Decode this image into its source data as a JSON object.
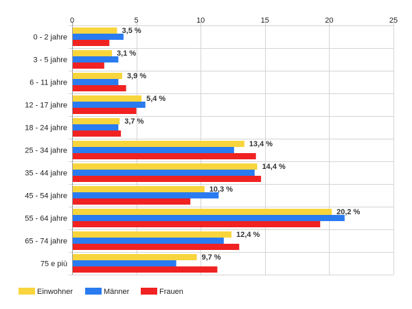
{
  "chart_data": {
    "type": "bar",
    "orientation": "horizontal",
    "categories": [
      "0 - 2 jahre",
      "3 - 5 jahre",
      "6 - 11 jahre",
      "12 - 17 jahre",
      "18 - 24 jahre",
      "25 - 34 jahre",
      "35 - 44 jahre",
      "45 - 54 jahre",
      "55 - 64 jahre",
      "65 - 74 jahre",
      "75 e più"
    ],
    "series": [
      {
        "name": "Einwohner",
        "color": "#f8d53c",
        "values": [
          3.5,
          3.1,
          3.9,
          5.4,
          3.7,
          13.4,
          14.4,
          10.3,
          20.2,
          12.4,
          9.7
        ]
      },
      {
        "name": "Männer",
        "color": "#2a7bf0",
        "values": [
          4.0,
          3.6,
          3.6,
          5.7,
          3.6,
          12.6,
          14.2,
          11.4,
          21.2,
          11.8,
          8.1
        ]
      },
      {
        "name": "Frauen",
        "color": "#f02222",
        "values": [
          2.9,
          2.5,
          4.2,
          5.0,
          3.8,
          14.3,
          14.7,
          9.2,
          19.3,
          13.0,
          11.3
        ]
      }
    ],
    "data_labels": [
      "3,5 %",
      "3,1 %",
      "3,9 %",
      "5,4 %",
      "3,7 %",
      "13,4 %",
      "14,4 %",
      "10,3 %",
      "20,2 %",
      "12,4 %",
      "9,7 %"
    ],
    "xlim": [
      0,
      25
    ],
    "x_ticks": [
      0,
      5,
      10,
      15,
      20,
      25
    ],
    "x_tick_labels": [
      "0",
      "5",
      "10",
      "15",
      "20",
      "25"
    ],
    "x_axis_position": "top",
    "grid": true,
    "legend_position": "bottom-left",
    "title": "",
    "xlabel": "",
    "ylabel": ""
  }
}
